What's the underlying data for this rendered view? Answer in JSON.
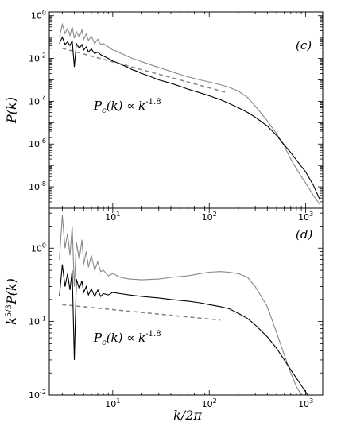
{
  "chart_data": [
    {
      "type": "line",
      "panel_label": "(c)",
      "xlabel": "",
      "ylabel": "P(k)",
      "xscale": "log",
      "yscale": "log",
      "xlim": [
        2.2,
        1500
      ],
      "ylim": [
        1e-09,
        1.5
      ],
      "xticks": [
        {
          "value": 10,
          "label": "10",
          "exp": "1"
        },
        {
          "value": 100,
          "label": "10",
          "exp": "2"
        },
        {
          "value": 1000,
          "label": "10",
          "exp": "3"
        }
      ],
      "yticks": [
        {
          "value": 1,
          "label": "10",
          "exp": "0"
        },
        {
          "value": 0.01,
          "label": "10",
          "exp": "-2"
        },
        {
          "value": 0.0001,
          "label": "10",
          "exp": "-4"
        },
        {
          "value": 1e-06,
          "label": "10",
          "exp": "-6"
        },
        {
          "value": 1e-08,
          "label": "10",
          "exp": "-8"
        }
      ],
      "annotation": {
        "text": "P",
        "sub": "c",
        "rest": "(k) ∝ k",
        "sup": "-1.8"
      },
      "series": [
        {
          "color": "#888888",
          "x": [
            2.8,
            3.0,
            3.2,
            3.4,
            3.6,
            3.8,
            4.0,
            4.2,
            4.5,
            4.8,
            5.0,
            5.3,
            5.6,
            6.0,
            6.5,
            7.0,
            7.5,
            8,
            9,
            10,
            11,
            12,
            14,
            16,
            18,
            20,
            25,
            30,
            40,
            50,
            60,
            80,
            100,
            130,
            160,
            200,
            250,
            300,
            400,
            500,
            600,
            700,
            800,
            900,
            1000,
            1200,
            1400
          ],
          "y": [
            0.1,
            0.4,
            0.15,
            0.25,
            0.12,
            0.3,
            0.09,
            0.18,
            0.1,
            0.22,
            0.08,
            0.14,
            0.07,
            0.11,
            0.05,
            0.08,
            0.045,
            0.05,
            0.035,
            0.025,
            0.022,
            0.018,
            0.013,
            0.01,
            0.0085,
            0.007,
            0.005,
            0.0038,
            0.0025,
            0.0018,
            0.0014,
            0.001,
            0.0008,
            0.0006,
            0.00045,
            0.0003,
            0.00015,
            6e-05,
            1.2e-05,
            3e-06,
            8e-07,
            2e-07,
            7e-08,
            3e-08,
            1.5e-08,
            4e-09,
            1.5e-09
          ]
        },
        {
          "color": "#000000",
          "x": [
            2.8,
            3.0,
            3.2,
            3.4,
            3.6,
            3.8,
            4.0,
            4.2,
            4.5,
            4.8,
            5.0,
            5.3,
            5.6,
            6.0,
            6.5,
            7.0,
            7.5,
            8,
            9,
            10,
            11,
            12,
            14,
            16,
            18,
            20,
            25,
            30,
            40,
            50,
            60,
            80,
            100,
            130,
            160,
            200,
            250,
            300,
            400,
            500,
            600,
            700,
            800,
            900,
            1000,
            1200,
            1400
          ],
          "y": [
            0.05,
            0.1,
            0.045,
            0.06,
            0.04,
            0.07,
            0.004,
            0.05,
            0.03,
            0.045,
            0.025,
            0.035,
            0.02,
            0.028,
            0.017,
            0.02,
            0.015,
            0.013,
            0.01,
            0.0075,
            0.0065,
            0.0055,
            0.004,
            0.003,
            0.0025,
            0.002,
            0.0014,
            0.001,
            0.0007,
            0.0005,
            0.00037,
            0.00025,
            0.00018,
            0.00012,
            8e-05,
            5e-05,
            3e-05,
            1.8e-05,
            7e-06,
            2.5e-06,
            9e-07,
            4e-07,
            1.8e-07,
            9e-08,
            5e-08,
            1.2e-08,
            2.5e-09
          ]
        }
      ],
      "reference_line": {
        "color": "#888888",
        "style": "dashed",
        "x": [
          3.0,
          150
        ],
        "y": [
          0.03,
          0.00026
        ]
      }
    },
    {
      "type": "line",
      "panel_label": "(d)",
      "xlabel": "k/2π",
      "ylabel_parts": {
        "base": "k",
        "sup": "5/3",
        "rest": "P(k)"
      },
      "xscale": "log",
      "yscale": "log",
      "xlim": [
        2.2,
        1500
      ],
      "ylim": [
        0.01,
        3.5
      ],
      "xticks": [
        {
          "value": 10,
          "label": "10",
          "exp": "1"
        },
        {
          "value": 100,
          "label": "10",
          "exp": "2"
        },
        {
          "value": 1000,
          "label": "10",
          "exp": "3"
        }
      ],
      "yticks": [
        {
          "value": 1,
          "label": "10",
          "exp": "0"
        },
        {
          "value": 0.1,
          "label": "10",
          "exp": "-1"
        },
        {
          "value": 0.01,
          "label": "10",
          "exp": "-2"
        }
      ],
      "annotation": {
        "text": "P",
        "sub": "c",
        "rest": "(k) ∝ k",
        "sup": "-1.8"
      },
      "series": [
        {
          "color": "#888888",
          "x": [
            2.8,
            3.0,
            3.2,
            3.4,
            3.6,
            3.8,
            4.0,
            4.2,
            4.5,
            4.8,
            5.0,
            5.3,
            5.6,
            6.0,
            6.5,
            7.0,
            7.5,
            8,
            9,
            10,
            12,
            15,
            20,
            30,
            40,
            60,
            80,
            100,
            130,
            160,
            200,
            250,
            300,
            400,
            500,
            600,
            700,
            800,
            900
          ],
          "y": [
            0.7,
            2.8,
            1.0,
            1.6,
            0.8,
            2.0,
            0.3,
            1.2,
            0.7,
            1.3,
            0.6,
            0.9,
            0.55,
            0.8,
            0.5,
            0.65,
            0.48,
            0.5,
            0.42,
            0.45,
            0.4,
            0.38,
            0.37,
            0.38,
            0.4,
            0.42,
            0.45,
            0.47,
            0.48,
            0.47,
            0.45,
            0.4,
            0.3,
            0.16,
            0.07,
            0.035,
            0.02,
            0.013,
            0.01
          ]
        },
        {
          "color": "#000000",
          "x": [
            2.8,
            3.0,
            3.2,
            3.4,
            3.6,
            3.8,
            4.0,
            4.2,
            4.5,
            4.8,
            5.0,
            5.3,
            5.6,
            6.0,
            6.5,
            7.0,
            7.5,
            8,
            9,
            10,
            12,
            15,
            20,
            30,
            40,
            60,
            80,
            100,
            130,
            160,
            200,
            250,
            300,
            400,
            500,
            600,
            700,
            800,
            1000,
            1200
          ],
          "y": [
            0.22,
            0.6,
            0.3,
            0.45,
            0.27,
            0.5,
            0.03,
            0.38,
            0.28,
            0.36,
            0.25,
            0.3,
            0.23,
            0.28,
            0.22,
            0.27,
            0.22,
            0.24,
            0.23,
            0.25,
            0.24,
            0.23,
            0.22,
            0.21,
            0.2,
            0.19,
            0.18,
            0.17,
            0.16,
            0.15,
            0.13,
            0.11,
            0.09,
            0.062,
            0.043,
            0.03,
            0.022,
            0.017,
            0.011,
            0.0075
          ]
        }
      ],
      "reference_line": {
        "color": "#888888",
        "style": "dashed",
        "x": [
          3.0,
          130
        ],
        "y": [
          0.17,
          0.105
        ]
      }
    }
  ]
}
